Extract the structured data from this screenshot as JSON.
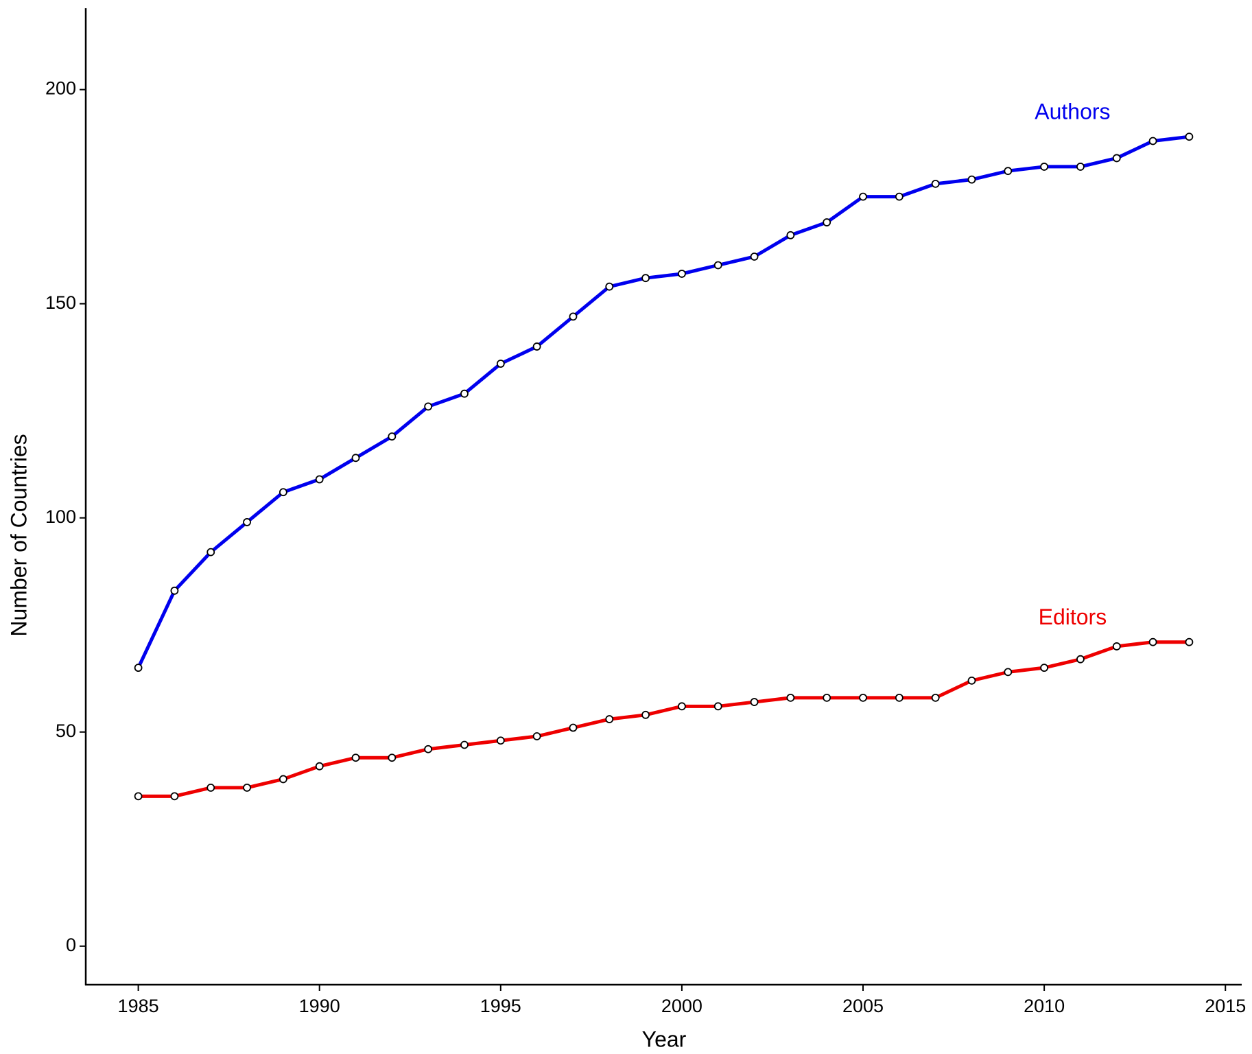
{
  "chart_data": {
    "type": "line",
    "x_label": "Year",
    "y_label": "Number of Countries",
    "x": [
      1985,
      1986,
      1987,
      1988,
      1989,
      1990,
      1991,
      1992,
      1993,
      1994,
      1995,
      1996,
      1997,
      1998,
      1999,
      2000,
      2001,
      2002,
      2003,
      2004,
      2005,
      2006,
      2007,
      2008,
      2009,
      2010,
      2011,
      2012,
      2013,
      2014
    ],
    "series": [
      {
        "name": "Authors",
        "color": "#0000ee",
        "values": [
          65,
          83,
          92,
          99,
          106,
          109,
          114,
          119,
          126,
          129,
          136,
          140,
          147,
          154,
          156,
          157,
          159,
          161,
          166,
          169,
          175,
          175,
          178,
          179,
          181,
          182,
          182,
          184,
          188,
          189
        ]
      },
      {
        "name": "Editors",
        "color": "#ee0000",
        "values": [
          35,
          35,
          37,
          37,
          39,
          42,
          44,
          44,
          46,
          47,
          48,
          49,
          51,
          53,
          54,
          56,
          56,
          57,
          58,
          58,
          58,
          58,
          58,
          62,
          64,
          65,
          67,
          70,
          71,
          71
        ]
      }
    ],
    "xlim": [
      1983.55,
      2015.45
    ],
    "xticks": [
      1985,
      1990,
      1995,
      2000,
      2005,
      2010,
      2015
    ],
    "ylim": [
      -9,
      219
    ],
    "yticks": [
      0,
      50,
      100,
      150,
      200
    ],
    "grid": false
  }
}
